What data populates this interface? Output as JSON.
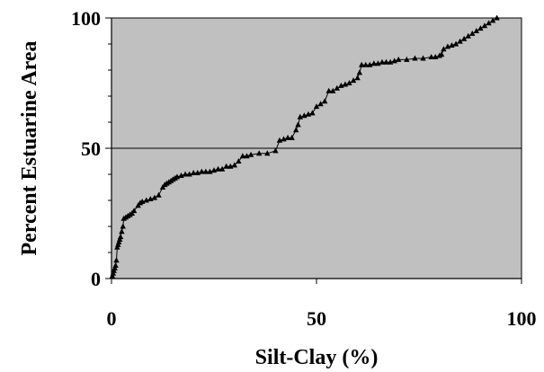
{
  "chart_data": {
    "type": "scatter",
    "title": "",
    "xlabel": "Silt-Clay (%)",
    "ylabel": "Percent Estuarine Area",
    "xlim": [
      0,
      100
    ],
    "ylim": [
      0,
      100
    ],
    "x_ticks": [
      "0",
      "50",
      "100"
    ],
    "y_ticks": [
      "0",
      "50",
      "100"
    ],
    "gridlines_y": [
      50
    ],
    "plot_background": "#c0c0c0",
    "line_color": "#000000",
    "marker": "triangle",
    "series": [
      {
        "x": [
          0.2,
          0.4,
          0.6,
          0.8,
          1.0,
          1.2,
          1.4,
          1.6,
          1.8,
          2.0,
          2.2,
          2.5,
          2.8,
          3.0,
          3.5,
          4.0,
          4.5,
          5.0,
          5.5,
          6.5,
          7.0,
          7.5,
          8.5,
          9.5,
          10.5,
          11.5,
          12.5,
          13.0,
          13.5,
          14.0,
          14.5,
          15.0,
          15.5,
          16.0,
          17.0,
          18.0,
          19.0,
          20.0,
          21.0,
          22.0,
          23.0,
          24.0,
          25.0,
          26.0,
          27.0,
          28.0,
          29.0,
          30.0,
          31.0,
          32.0,
          33.0,
          34.0,
          36.0,
          38.0,
          40.0,
          41.0,
          42.0,
          43.0,
          44.0,
          45.0,
          45.5,
          46.0,
          47.0,
          48.0,
          49.0,
          50.0,
          51.0,
          52.0,
          53.0,
          54.0,
          55.0,
          56.0,
          57.0,
          58.0,
          59.0,
          60.0,
          60.5,
          61.0,
          62.0,
          63.0,
          64.0,
          65.0,
          66.0,
          67.0,
          68.0,
          69.0,
          70.0,
          72.0,
          74.0,
          76.0,
          78.0,
          79.0,
          80.0,
          80.5,
          81.0,
          82.0,
          83.0,
          84.0,
          85.0,
          86.0,
          87.0,
          88.0,
          89.0,
          90.0,
          91.0,
          92.0,
          93.0,
          94.0
        ],
        "y": [
          1,
          2,
          3,
          4,
          5,
          7,
          12,
          13,
          14,
          15,
          16,
          18,
          20,
          23,
          23.5,
          24,
          24.5,
          25,
          26,
          28,
          29,
          29.5,
          30,
          30.5,
          31,
          32,
          35,
          36,
          36.5,
          37,
          37.5,
          38,
          38.5,
          39,
          39.5,
          40,
          40,
          40.5,
          40.5,
          41,
          41,
          41,
          41.5,
          42,
          42,
          43,
          43,
          43.5,
          45,
          47,
          47,
          47.5,
          48,
          48,
          49,
          53,
          53.5,
          54,
          54,
          57,
          59,
          62,
          62.5,
          63,
          63.5,
          66,
          67,
          68,
          72,
          72,
          73,
          74,
          74.5,
          75,
          76,
          77,
          79,
          82,
          82,
          82,
          82.5,
          82.5,
          83,
          83,
          83,
          83.5,
          84,
          84,
          84.5,
          84.5,
          85,
          85,
          85.5,
          86,
          88,
          89,
          89.5,
          90,
          91,
          92,
          93,
          94,
          95,
          96,
          97,
          98,
          99,
          100
        ]
      }
    ]
  }
}
